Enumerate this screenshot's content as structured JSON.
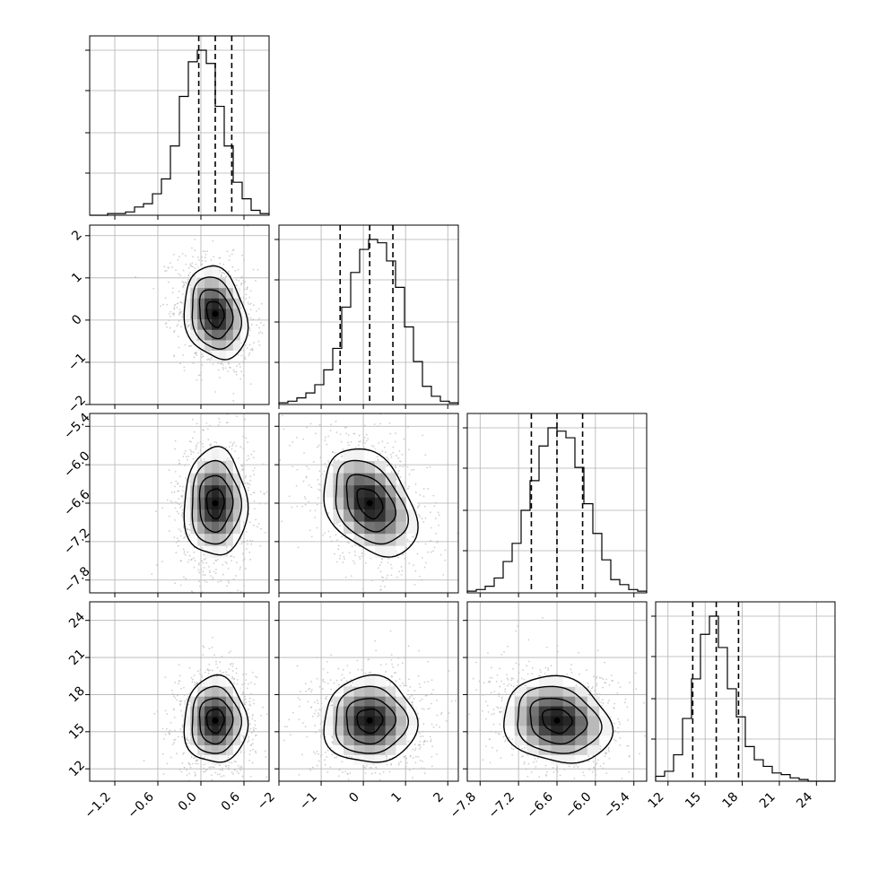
{
  "chart_data": {
    "type": "corner",
    "grid": true,
    "parameters": [
      {
        "ticks": [
          -1.2,
          -0.6,
          0.0,
          0.6
        ],
        "tick_labels": [
          "−1.2",
          "−0.6",
          "0.0",
          "0.6"
        ],
        "range": [
          -1.55,
          0.95
        ],
        "quantiles": [
          -0.03,
          0.2,
          0.43
        ],
        "hist": [
          0,
          0,
          0.01,
          0.01,
          0.02,
          0.05,
          0.07,
          0.13,
          0.22,
          0.42,
          0.72,
          0.93,
          1.0,
          0.92,
          0.66,
          0.42,
          0.2,
          0.1,
          0.03,
          0.01
        ]
      },
      {
        "ticks": [
          -2,
          -1,
          0,
          1,
          2
        ],
        "tick_labels": [
          "−2",
          "−1",
          "0",
          "1",
          "2"
        ],
        "range": [
          -2.0,
          2.25
        ],
        "quantiles": [
          -0.55,
          0.15,
          0.7
        ],
        "hist": [
          0.01,
          0.02,
          0.04,
          0.07,
          0.12,
          0.21,
          0.34,
          0.59,
          0.8,
          0.94,
          1.0,
          0.98,
          0.87,
          0.71,
          0.47,
          0.26,
          0.11,
          0.05,
          0.02,
          0.01
        ]
      },
      {
        "ticks": [
          -7.8,
          -7.2,
          -6.6,
          -6.0,
          -5.4
        ],
        "tick_labels": [
          "−7.8",
          "−7.2",
          "−6.6",
          "−6.0",
          "−5.4"
        ],
        "range": [
          -8.0,
          -5.2
        ],
        "quantiles": [
          -7.0,
          -6.6,
          -6.2
        ],
        "hist": [
          0.01,
          0.02,
          0.04,
          0.09,
          0.19,
          0.3,
          0.5,
          0.68,
          0.89,
          1.0,
          0.98,
          0.94,
          0.76,
          0.54,
          0.36,
          0.2,
          0.08,
          0.05,
          0.02,
          0.01
        ]
      },
      {
        "ticks": [
          12,
          15,
          18,
          21,
          24
        ],
        "tick_labels": [
          "12",
          "15",
          "18",
          "21",
          "24"
        ],
        "range": [
          11,
          25.5
        ],
        "quantiles": [
          14.0,
          15.9,
          17.7
        ],
        "hist": [
          0.03,
          0.06,
          0.16,
          0.38,
          0.62,
          0.89,
          1.0,
          0.81,
          0.56,
          0.39,
          0.21,
          0.13,
          0.09,
          0.05,
          0.04,
          0.02,
          0.01,
          0.0,
          0.0,
          0.0
        ]
      }
    ],
    "pairs": [
      {
        "row": 1,
        "col": 0,
        "mean": [
          0.2,
          0.15
        ],
        "std": [
          0.22,
          0.55
        ],
        "rho": -0.2
      },
      {
        "row": 2,
        "col": 0,
        "mean": [
          0.2,
          -6.6
        ],
        "std": [
          0.22,
          0.42
        ],
        "rho": 0.0
      },
      {
        "row": 2,
        "col": 1,
        "mean": [
          0.15,
          -6.6
        ],
        "std": [
          0.55,
          0.42
        ],
        "rho": -0.35
      },
      {
        "row": 3,
        "col": 0,
        "mean": [
          0.2,
          15.9
        ],
        "std": [
          0.22,
          1.75
        ],
        "rho": 0.0
      },
      {
        "row": 3,
        "col": 1,
        "mean": [
          0.15,
          15.9
        ],
        "std": [
          0.55,
          1.75
        ],
        "rho": 0.0
      },
      {
        "row": 3,
        "col": 2,
        "mean": [
          -6.6,
          15.9
        ],
        "std": [
          0.42,
          1.75
        ],
        "rho": -0.15
      }
    ]
  },
  "colors": {
    "axes": "#000000",
    "grid": "#b0b0b0",
    "contour": "#000000",
    "scatter": "#bbbbbb"
  }
}
